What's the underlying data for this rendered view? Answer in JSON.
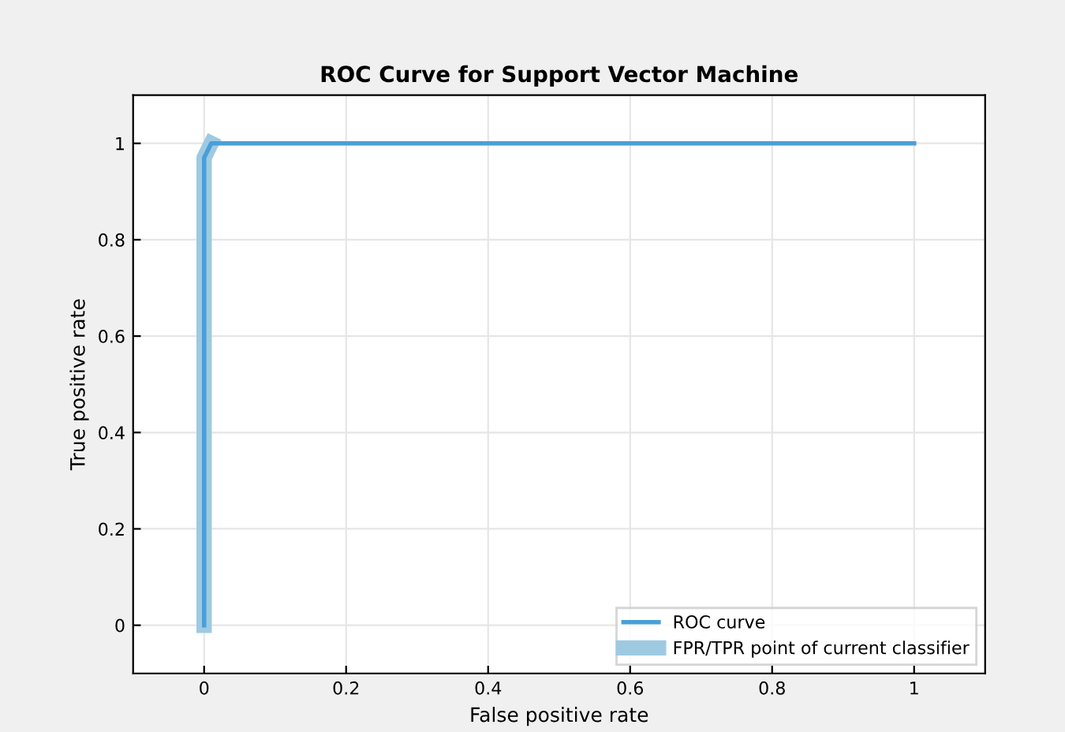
{
  "chart_data": {
    "type": "line",
    "title": "ROC Curve for Support Vector Machine",
    "xlabel": "False positive rate",
    "ylabel": "True positive rate",
    "series": [
      {
        "name": "ROC curve",
        "color": "#4a9fd8",
        "x": [
          0,
          0,
          0.01,
          1
        ],
        "values": [
          0,
          0.97,
          1,
          1
        ]
      },
      {
        "name": "FPR/TPR point of current classifier",
        "color": "#9ecae1",
        "x": [
          0,
          0,
          0.01
        ],
        "values": [
          0,
          0.97,
          1
        ]
      }
    ],
    "xlim": [
      -0.1,
      1.1
    ],
    "ylim": [
      -0.1,
      1.1
    ],
    "xticks": [
      0,
      0.2,
      0.4,
      0.6,
      0.8,
      1
    ],
    "yticks": [
      0,
      0.2,
      0.4,
      0.6,
      0.8,
      1
    ],
    "grid": true,
    "legend": "bottom right"
  }
}
